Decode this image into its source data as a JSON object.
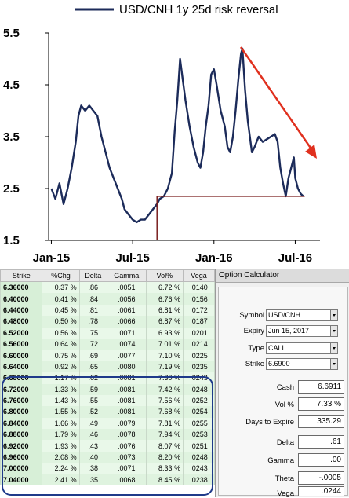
{
  "chart_data": {
    "type": "line",
    "title": "USD/CNH 1y 25d risk reversal",
    "series": [
      {
        "name": "USD/CNH 1y 25d risk reversal",
        "color": "#1c2b5a",
        "points": [
          [
            0.0,
            2.5
          ],
          [
            0.3,
            2.3
          ],
          [
            0.6,
            2.6
          ],
          [
            0.9,
            2.2
          ],
          [
            1.2,
            2.5
          ],
          [
            1.5,
            2.9
          ],
          [
            1.8,
            3.4
          ],
          [
            2.0,
            3.9
          ],
          [
            2.2,
            4.1
          ],
          [
            2.5,
            4.0
          ],
          [
            2.8,
            4.1
          ],
          [
            3.1,
            4.0
          ],
          [
            3.4,
            3.9
          ],
          [
            3.7,
            3.5
          ],
          [
            4.0,
            3.2
          ],
          [
            4.3,
            2.9
          ],
          [
            4.6,
            2.7
          ],
          [
            4.9,
            2.5
          ],
          [
            5.2,
            2.3
          ],
          [
            5.4,
            2.1
          ],
          [
            5.7,
            2.0
          ],
          [
            6.0,
            1.9
          ],
          [
            6.3,
            1.85
          ],
          [
            6.6,
            1.9
          ],
          [
            6.9,
            1.9
          ],
          [
            7.2,
            2.0
          ],
          [
            7.5,
            2.1
          ],
          [
            7.8,
            2.2
          ],
          [
            8.0,
            2.3
          ],
          [
            8.3,
            2.35
          ],
          [
            8.6,
            2.5
          ],
          [
            8.9,
            2.8
          ],
          [
            9.1,
            3.6
          ],
          [
            9.3,
            4.2
          ],
          [
            9.5,
            5.0
          ],
          [
            9.7,
            4.6
          ],
          [
            9.9,
            4.2
          ],
          [
            10.2,
            3.7
          ],
          [
            10.5,
            3.3
          ],
          [
            10.8,
            3.0
          ],
          [
            11.0,
            2.9
          ],
          [
            11.2,
            3.2
          ],
          [
            11.4,
            3.7
          ],
          [
            11.6,
            4.1
          ],
          [
            11.8,
            4.7
          ],
          [
            12.0,
            4.8
          ],
          [
            12.2,
            4.5
          ],
          [
            12.5,
            4.0
          ],
          [
            12.8,
            3.7
          ],
          [
            13.0,
            3.3
          ],
          [
            13.2,
            3.2
          ],
          [
            13.4,
            3.5
          ],
          [
            13.6,
            4.0
          ],
          [
            13.8,
            4.6
          ],
          [
            14.0,
            5.1
          ],
          [
            14.1,
            5.2
          ],
          [
            14.3,
            4.4
          ],
          [
            14.5,
            3.8
          ],
          [
            14.8,
            3.2
          ],
          [
            15.0,
            3.3
          ],
          [
            15.3,
            3.5
          ],
          [
            15.6,
            3.4
          ],
          [
            15.9,
            3.45
          ],
          [
            16.2,
            3.5
          ],
          [
            16.5,
            3.55
          ],
          [
            16.7,
            3.4
          ],
          [
            16.9,
            2.9
          ],
          [
            17.1,
            2.6
          ],
          [
            17.3,
            2.35
          ],
          [
            17.5,
            2.7
          ],
          [
            17.7,
            2.9
          ],
          [
            17.9,
            3.1
          ],
          [
            18.0,
            2.7
          ],
          [
            18.2,
            2.5
          ],
          [
            18.4,
            2.4
          ],
          [
            18.6,
            2.35
          ]
        ]
      }
    ],
    "x_ticks": [
      {
        "label": "Jan-15",
        "x": 0
      },
      {
        "label": "Jul-15",
        "x": 6
      },
      {
        "label": "Jan-16",
        "x": 12
      },
      {
        "label": "Jul-16",
        "x": 18
      }
    ],
    "xlim": [
      -0.2,
      18.9
    ],
    "ylim": [
      1.5,
      5.5
    ],
    "y_ticks": [
      "5.5",
      "4.5",
      "3.5",
      "2.5",
      "1.5"
    ],
    "annotations": {
      "support_level": 2.35,
      "support_from_x": 7.8,
      "arrow_color": "#e0301e",
      "support_color": "#7a1f1f"
    }
  },
  "table": {
    "headers": [
      "Strike",
      "%Chg",
      "Delta",
      "Gamma",
      "Vol%",
      "Vega"
    ],
    "rows": [
      [
        "6.36000",
        "0.37 %",
        ".86",
        ".0051",
        "6.72 %",
        ".0140"
      ],
      [
        "6.40000",
        "0.41 %",
        ".84",
        ".0056",
        "6.76 %",
        ".0156"
      ],
      [
        "6.44000",
        "0.45 %",
        ".81",
        ".0061",
        "6.81 %",
        ".0172"
      ],
      [
        "6.48000",
        "0.50 %",
        ".78",
        ".0066",
        "6.87 %",
        ".0187"
      ],
      [
        "6.52000",
        "0.56 %",
        ".75",
        ".0071",
        "6.93 %",
        ".0201"
      ],
      [
        "6.56000",
        "0.64 %",
        ".72",
        ".0074",
        "7.01 %",
        ".0214"
      ],
      [
        "6.60000",
        "0.75 %",
        ".69",
        ".0077",
        "7.10 %",
        ".0225"
      ],
      [
        "6.64000",
        "0.92 %",
        ".65",
        ".0080",
        "7.19 %",
        ".0235"
      ],
      [
        "6.68000",
        "1.17 %",
        ".62",
        ".0081",
        "7.30 %",
        ".0243"
      ],
      [
        "6.72000",
        "1.33 %",
        ".59",
        ".0081",
        "7.42 %",
        ".0248"
      ],
      [
        "6.76000",
        "1.43 %",
        ".55",
        ".0081",
        "7.56 %",
        ".0252"
      ],
      [
        "6.80000",
        "1.55 %",
        ".52",
        ".0081",
        "7.68 %",
        ".0254"
      ],
      [
        "6.84000",
        "1.66 %",
        ".49",
        ".0079",
        "7.81 %",
        ".0255"
      ],
      [
        "6.88000",
        "1.79 %",
        ".46",
        ".0078",
        "7.94 %",
        ".0253"
      ],
      [
        "6.92000",
        "1.93 %",
        ".43",
        ".0076",
        "8.07 %",
        ".0251"
      ],
      [
        "6.96000",
        "2.08 %",
        ".40",
        ".0073",
        "8.20 %",
        ".0248"
      ],
      [
        "7.00000",
        "2.24 %",
        ".38",
        ".0071",
        "8.33 %",
        ".0243"
      ],
      [
        "7.04000",
        "2.41 %",
        ".35",
        ".0068",
        "8.45 %",
        ".0238"
      ]
    ]
  },
  "calc": {
    "title": "Option Calculator",
    "symbol_label": "Symbol",
    "symbol": "USD/CNH",
    "expiry_label": "Expiry",
    "expiry": "Jun 15, 2017",
    "type_label": "Type",
    "type": "CALL",
    "strike_label": "Strike",
    "strike": "6.6900",
    "cash_label": "Cash",
    "cash": "6.6911",
    "vol_label": "Vol %",
    "vol": "7.33 %",
    "days_label": "Days to Expire",
    "days": "335.29",
    "delta_label": "Delta",
    "delta": ".61",
    "gamma_label": "Gamma",
    "gamma": ".00",
    "theta_label": "Theta",
    "theta": "-.0005",
    "vega_label": "Vega",
    "vega": ".0244"
  }
}
